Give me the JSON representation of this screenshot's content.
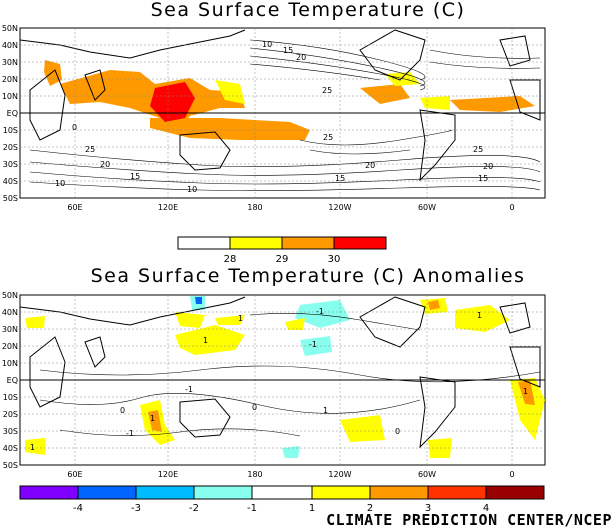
{
  "top_map": {
    "title": "Sea Surface Temperature (C)",
    "lat_labels": [
      "50N",
      "40N",
      "30N",
      "20N",
      "10N",
      "EQ",
      "10S",
      "20S",
      "30S",
      "40S",
      "50S"
    ],
    "lon_labels": [
      "60E",
      "120E",
      "180",
      "120W",
      "60W",
      "0"
    ],
    "contour_labels": [
      "10",
      "15",
      "20",
      "25",
      "25",
      "20",
      "15",
      "10",
      "15",
      "20",
      "25",
      "25",
      "20",
      "15",
      "10",
      "0"
    ],
    "colorbar": {
      "colors": [
        "#ffffff",
        "#ffff00",
        "#ff9900",
        "#ff0000"
      ],
      "tick_labels": [
        "28",
        "29",
        "30"
      ]
    }
  },
  "bottom_map": {
    "title": "Sea Surface Temperature (C) Anomalies",
    "lat_labels": [
      "50N",
      "40N",
      "30N",
      "20N",
      "10N",
      "EQ",
      "10S",
      "20S",
      "30S",
      "40S",
      "50S"
    ],
    "lon_labels": [
      "60E",
      "120E",
      "180",
      "120W",
      "60W",
      "0"
    ],
    "contour_labels": [
      "-1",
      "1",
      "-1",
      "1",
      "1",
      "1",
      "-1",
      "1",
      "0",
      "0",
      "0",
      "1",
      "-1",
      "1"
    ],
    "colorbar": {
      "colors": [
        "#8000ff",
        "#0066ff",
        "#00bbff",
        "#88ffee",
        "#ffffff",
        "#ffff00",
        "#ff9900",
        "#ff3300",
        "#ff0000",
        "#990000"
      ],
      "tick_labels": [
        "-4",
        "-3",
        "-2",
        "-1",
        "1",
        "2",
        "3",
        "4"
      ]
    }
  },
  "credit": "CLIMATE PREDICTION CENTER/NCEP",
  "colors": {
    "land_outline": "#000000",
    "warm_yellow": "#ffff00",
    "warm_orange": "#ff9900",
    "warm_red": "#ff0000",
    "cool_cyan": "#88ffee"
  }
}
